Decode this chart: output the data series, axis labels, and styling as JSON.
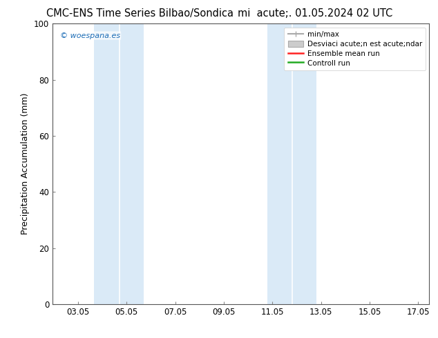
{
  "title_left": "CMC-ENS Time Series Bilbao/Sondica",
  "title_right": "mi  acute;. 01.05.2024 02 UTC",
  "ylabel": "Precipitation Accumulation (mm)",
  "xlim": [
    2.0,
    17.5
  ],
  "ylim": [
    0,
    100
  ],
  "yticks": [
    0,
    20,
    40,
    60,
    80,
    100
  ],
  "xticks": [
    3.05,
    5.05,
    7.05,
    9.05,
    11.05,
    13.05,
    15.05,
    17.05
  ],
  "xtick_labels": [
    "03.05",
    "05.05",
    "07.05",
    "09.05",
    "11.05",
    "13.05",
    "15.05",
    "17.05"
  ],
  "shade_bands": [
    [
      [
        3.7,
        4.75
      ],
      [
        4.75,
        5.75
      ]
    ],
    [
      [
        10.85,
        11.85
      ],
      [
        11.85,
        12.85
      ]
    ]
  ],
  "shade_color_left": "#d6eaf8",
  "shade_color_right": "#ddeeff",
  "background_color": "#ffffff",
  "watermark": "© woespana.es",
  "watermark_color": "#1a6bb5",
  "title_fontsize": 10.5,
  "ylabel_fontsize": 9,
  "tick_fontsize": 8.5,
  "legend_fontsize": 7.5
}
